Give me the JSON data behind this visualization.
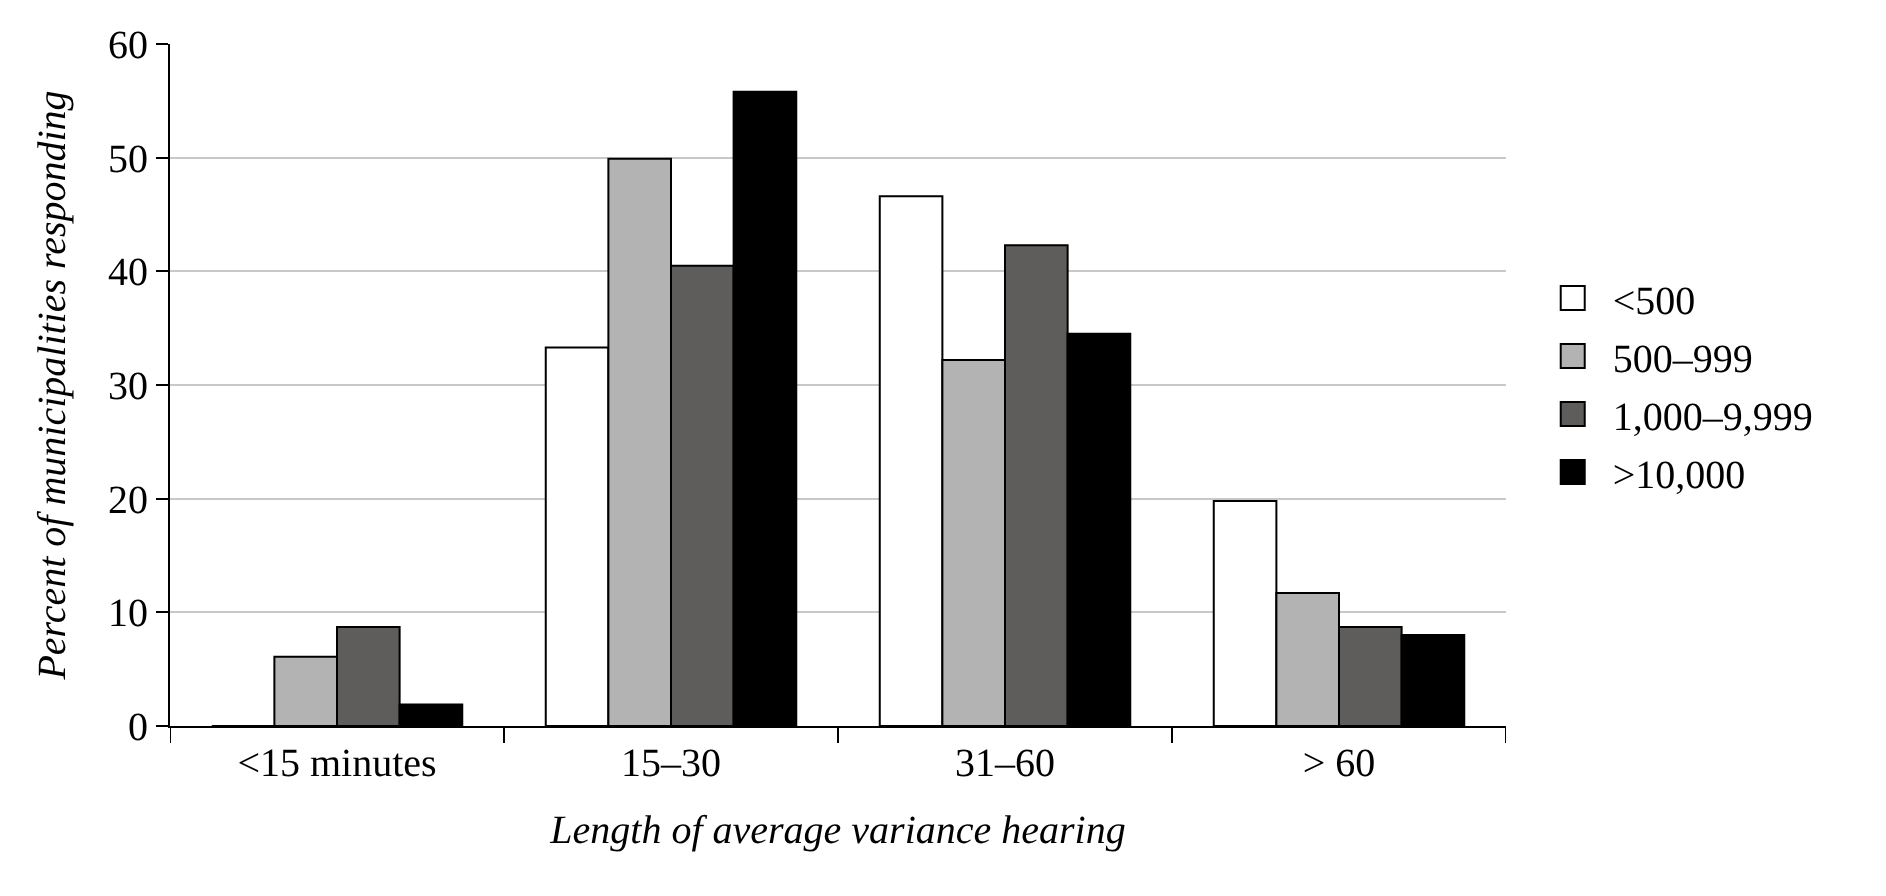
{
  "chart_data": {
    "type": "bar",
    "xlabel": "Length of average variance hearing",
    "ylabel": "Percent of municipalities responding",
    "categories": [
      "<15 minutes",
      "15–30",
      "31–60",
      "> 60"
    ],
    "series": [
      {
        "name": "<500",
        "color": "#ffffff",
        "values": [
          0,
          33.3,
          46.6,
          19.8
        ]
      },
      {
        "name": "500–999",
        "color": "#b3b3b3",
        "values": [
          6.1,
          49.9,
          32.2,
          11.7
        ]
      },
      {
        "name": "1,000–9,999",
        "color": "#5e5d5b",
        "values": [
          8.7,
          40.5,
          42.3,
          8.7
        ]
      },
      {
        "name": ">10,000",
        "color": "#000000",
        "values": [
          1.9,
          55.8,
          34.5,
          8.0
        ]
      }
    ],
    "ylim": [
      0,
      60
    ],
    "yticks": [
      0,
      10,
      20,
      30,
      40,
      50,
      60
    ],
    "grid": "y",
    "legend": "right"
  }
}
